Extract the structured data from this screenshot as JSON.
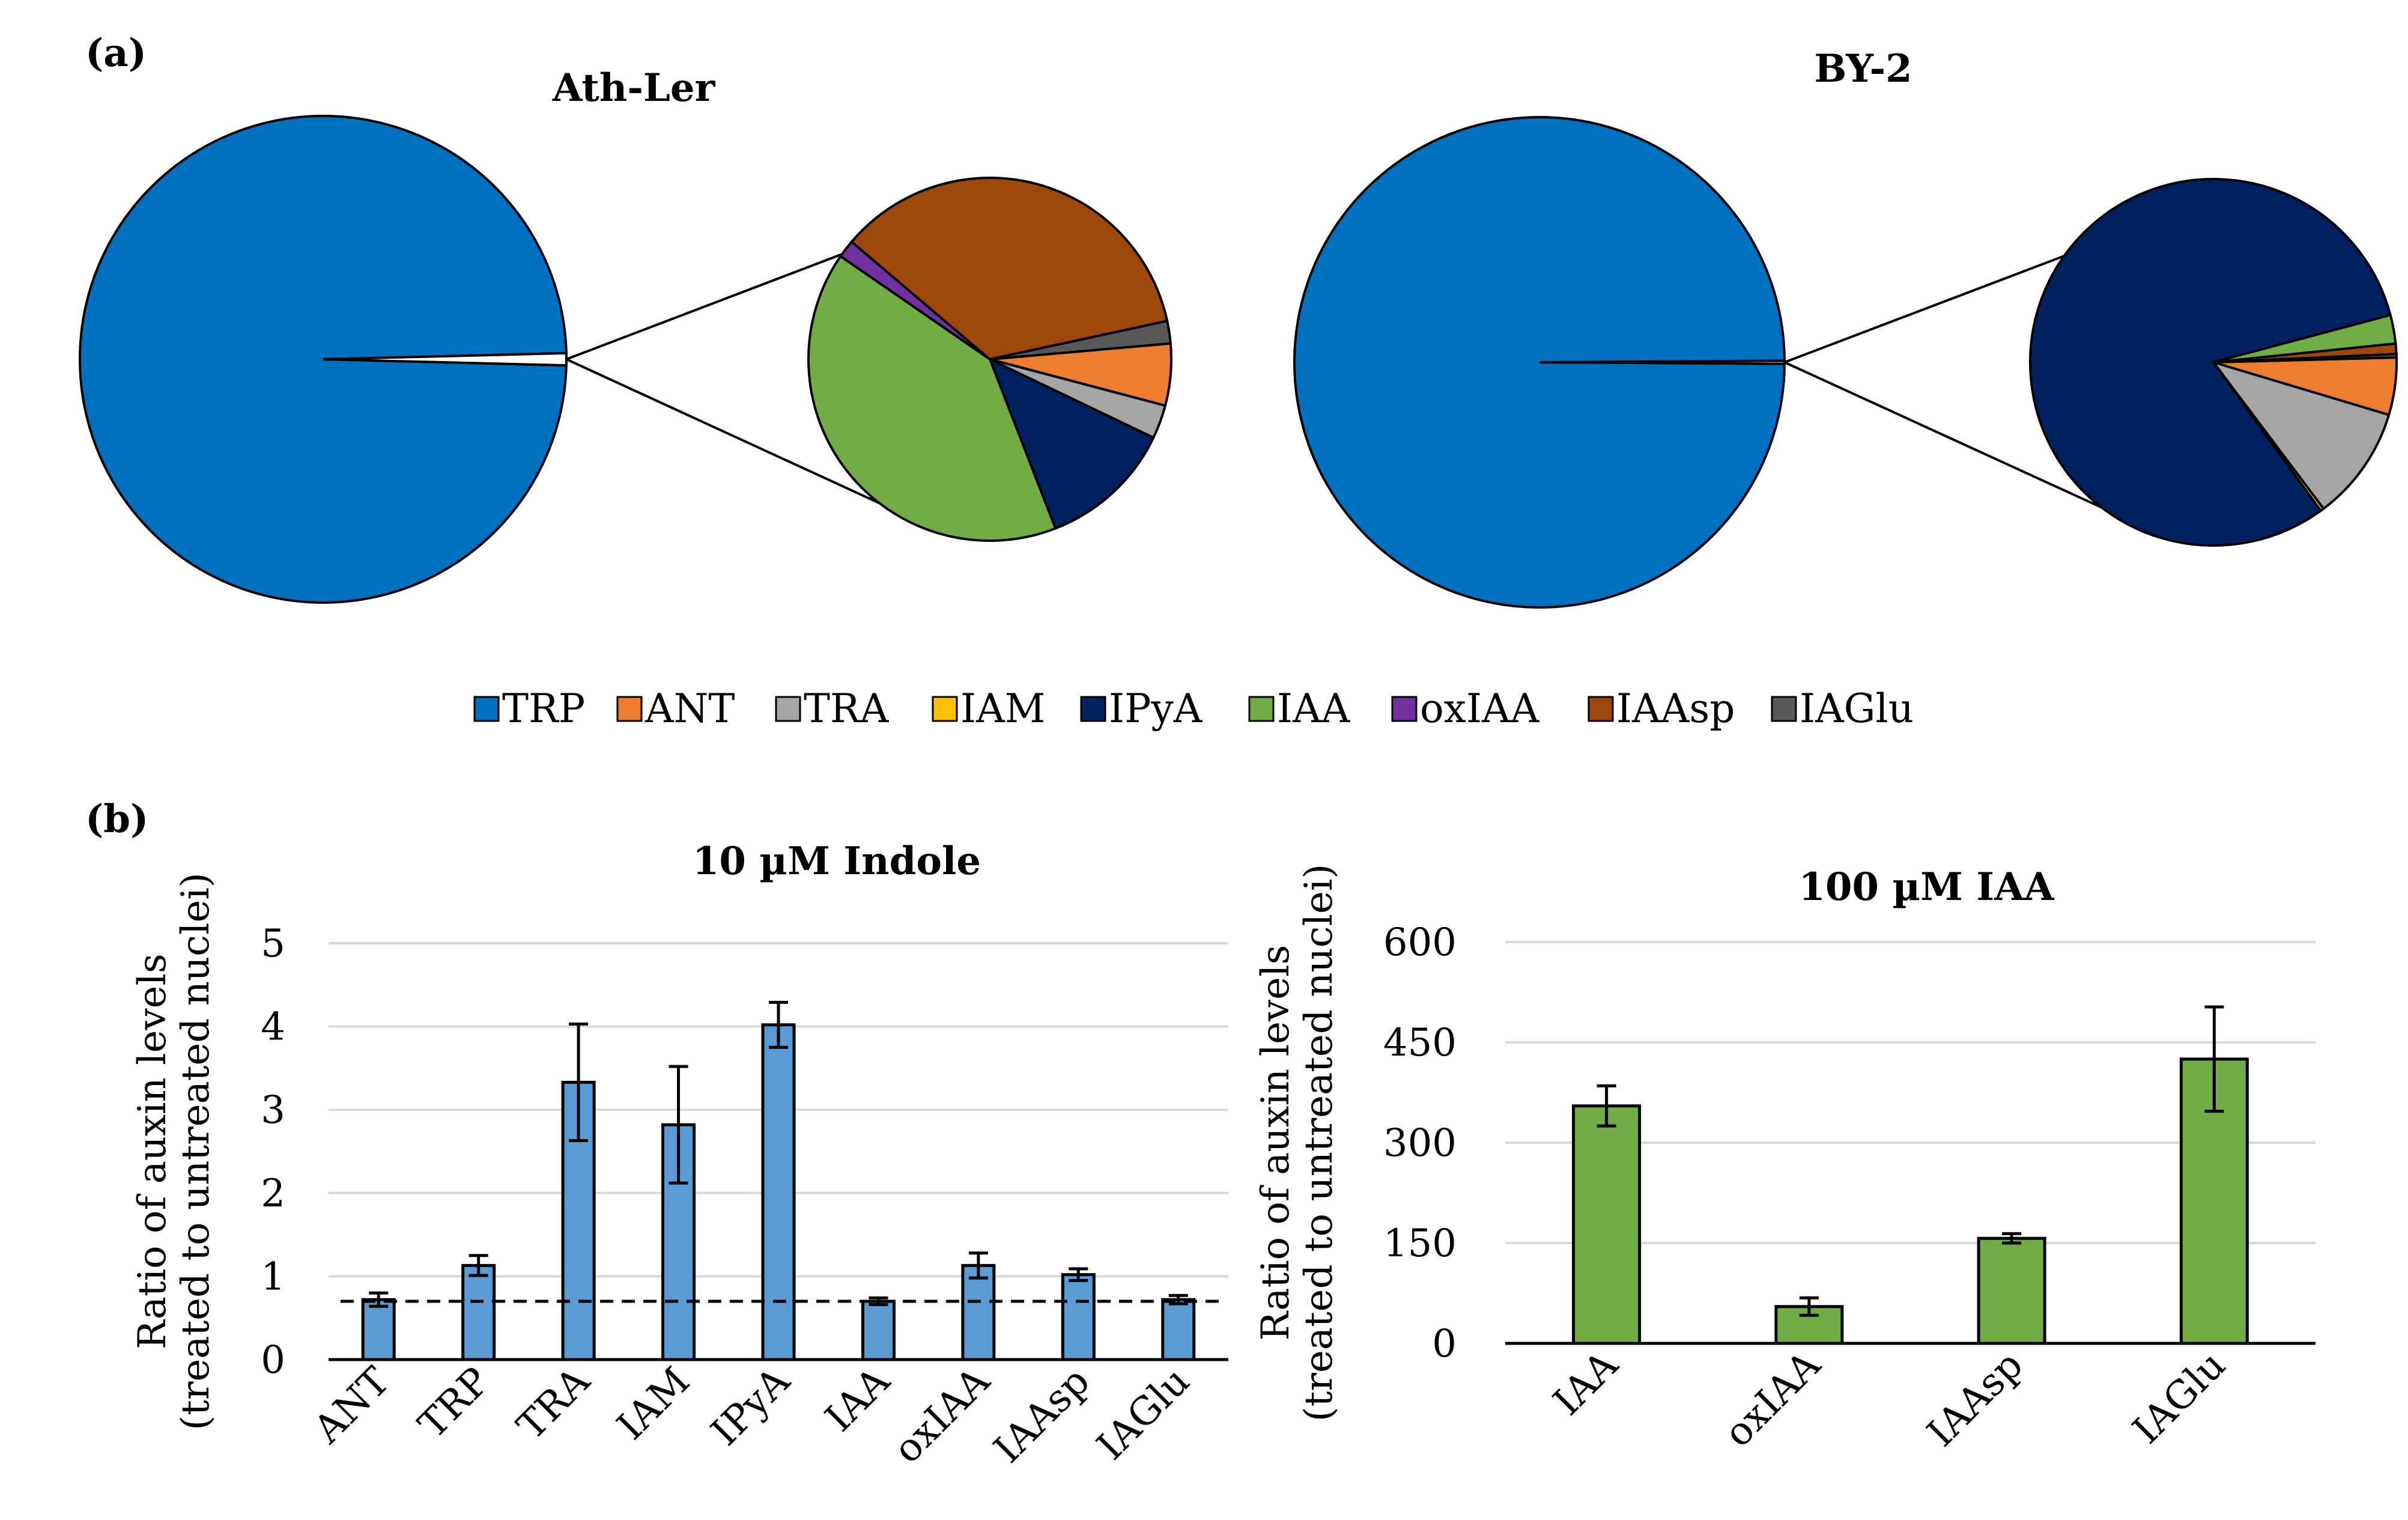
{
  "panel_a_label": "(a)",
  "panel_b_label": "(b)",
  "legend": [
    {
      "name": "TRP",
      "color": "#0070C0"
    },
    {
      "name": "ANT",
      "color": "#ED7D31"
    },
    {
      "name": "TRA",
      "color": "#A5A5A5"
    },
    {
      "name": "IAM",
      "color": "#FFC000"
    },
    {
      "name": "IPyA",
      "color": "#002060"
    },
    {
      "name": "IAA",
      "color": "#70AD47"
    },
    {
      "name": "oxIAA",
      "color": "#7030A0"
    },
    {
      "name": "IAAsp",
      "color": "#9E480E"
    },
    {
      "name": "IAGlu",
      "color": "#595959"
    }
  ],
  "chart_data": [
    {
      "type": "pie",
      "title": "Ath-Ler",
      "main": [
        {
          "label": "TRP",
          "value": 99.2
        },
        {
          "label": "other",
          "value": 0.8
        }
      ],
      "detail": [
        {
          "label": "ANT",
          "value": 5.5
        },
        {
          "label": "TRA",
          "value": 3.0
        },
        {
          "label": "IAM",
          "value": 0.0
        },
        {
          "label": "IPyA",
          "value": 12.0
        },
        {
          "label": "IAA",
          "value": 40.5
        },
        {
          "label": "oxIAA",
          "value": 1.6
        },
        {
          "label": "IAAsp",
          "value": 35.4
        },
        {
          "label": "IAGlu",
          "value": 2.0
        }
      ]
    },
    {
      "type": "pie",
      "title": "BY-2",
      "main": [
        {
          "label": "TRP",
          "value": 99.8
        },
        {
          "label": "other",
          "value": 0.2
        }
      ],
      "detail": [
        {
          "label": "ANT",
          "value": 5.0
        },
        {
          "label": "TRA",
          "value": 10.0
        },
        {
          "label": "IAM",
          "value": 0.3
        },
        {
          "label": "IPyA",
          "value": 80.0
        },
        {
          "label": "IAA",
          "value": 2.5
        },
        {
          "label": "oxIAA",
          "value": 0.0
        },
        {
          "label": "IAAsp",
          "value": 0.9
        },
        {
          "label": "IAGlu",
          "value": 0.3
        }
      ]
    },
    {
      "type": "bar",
      "title": "10 µM Indole",
      "ylabel_line1": "Ratio of auxin levels",
      "ylabel_line2": "(treated to untreated nuclei)",
      "categories": [
        "ANT",
        "TRP",
        "TRA",
        "IAM",
        "IPyA",
        "IAA",
        "oxIAA",
        "IAAsp",
        "IAGlu"
      ],
      "values": [
        0.72,
        1.13,
        3.33,
        2.82,
        4.02,
        0.7,
        1.13,
        1.02,
        0.72
      ],
      "errors": [
        0.08,
        0.12,
        0.7,
        0.7,
        0.27,
        0.04,
        0.15,
        0.07,
        0.05
      ],
      "yticks": [
        0,
        1,
        2,
        3,
        4,
        5
      ],
      "ylim": [
        0,
        5
      ],
      "reference_line": 0.7,
      "color": "#5B9BD5"
    },
    {
      "type": "bar",
      "title": "100 µM IAA",
      "ylabel_line1": "Ratio of auxin levels",
      "ylabel_line2": "(treated to untreated nuclei)",
      "categories": [
        "IAA",
        "oxIAA",
        "IAAsp",
        "IAGlu"
      ],
      "values": [
        355,
        55,
        157,
        425
      ],
      "errors": [
        30,
        13,
        7,
        78
      ],
      "yticks": [
        0,
        150,
        300,
        450,
        600
      ],
      "ylim": [
        0,
        600
      ],
      "color": "#70AD47"
    }
  ]
}
